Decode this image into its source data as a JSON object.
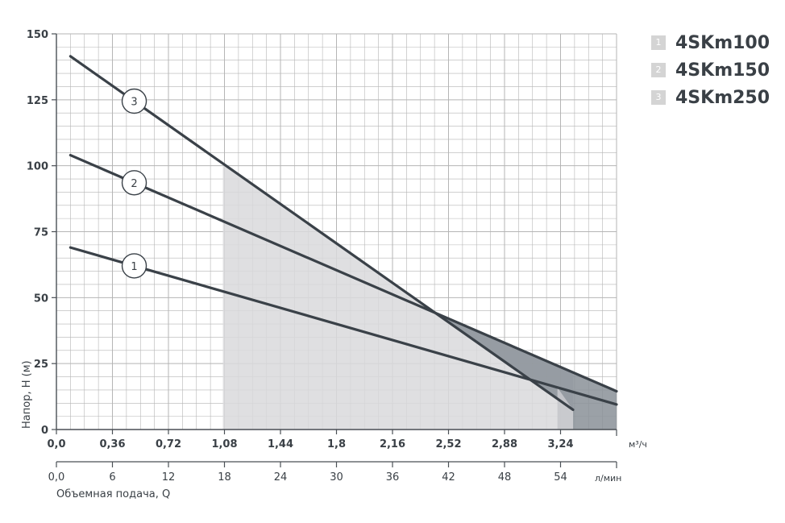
{
  "chart_data": {
    "type": "line",
    "xlabel": "Объемная подача, Q",
    "ylabel": "Напор, Н (м)",
    "xlim": [
      0,
      3.6
    ],
    "ylim": [
      0,
      150
    ],
    "x_unit_top": "м³/ч",
    "x_unit_bottom": "л/мин",
    "x_ticks_top": [
      "0,0",
      "0,36",
      "0,72",
      "1,08",
      "1,44",
      "1,8",
      "2,16",
      "2,52",
      "2,88",
      "3,24"
    ],
    "x_ticks_bottom": [
      "0,0",
      "6",
      "12",
      "18",
      "24",
      "30",
      "36",
      "42",
      "48",
      "54"
    ],
    "y_ticks": [
      "0",
      "25",
      "50",
      "75",
      "100",
      "125",
      "150"
    ],
    "grid": true,
    "legend_position": "top-right",
    "series": [
      {
        "name": "4SKm100",
        "marker": "1",
        "x": [
          0.09,
          3.6
        ],
        "y": [
          69,
          9.5
        ],
        "region": [
          1.08,
          3.22
        ]
      },
      {
        "name": "4SKm150",
        "marker": "2",
        "x": [
          0.09,
          3.6
        ],
        "y": [
          104,
          14.5
        ],
        "region": [
          1.08,
          3.6
        ]
      },
      {
        "name": "4SKm250",
        "marker": "3",
        "x": [
          0.09,
          3.32
        ],
        "y": [
          141.5,
          7.5
        ],
        "region": [
          1.08,
          3.32
        ]
      }
    ],
    "operating_band": [
      1.08,
      3.6
    ]
  },
  "colors": {
    "grid": "#b5b5b5",
    "axis": "#4a4f55",
    "curve": "#3a4148",
    "band_light": "#d9d9dc",
    "band_mid": "#c6c8cc",
    "band_dark": "#8a9098"
  }
}
